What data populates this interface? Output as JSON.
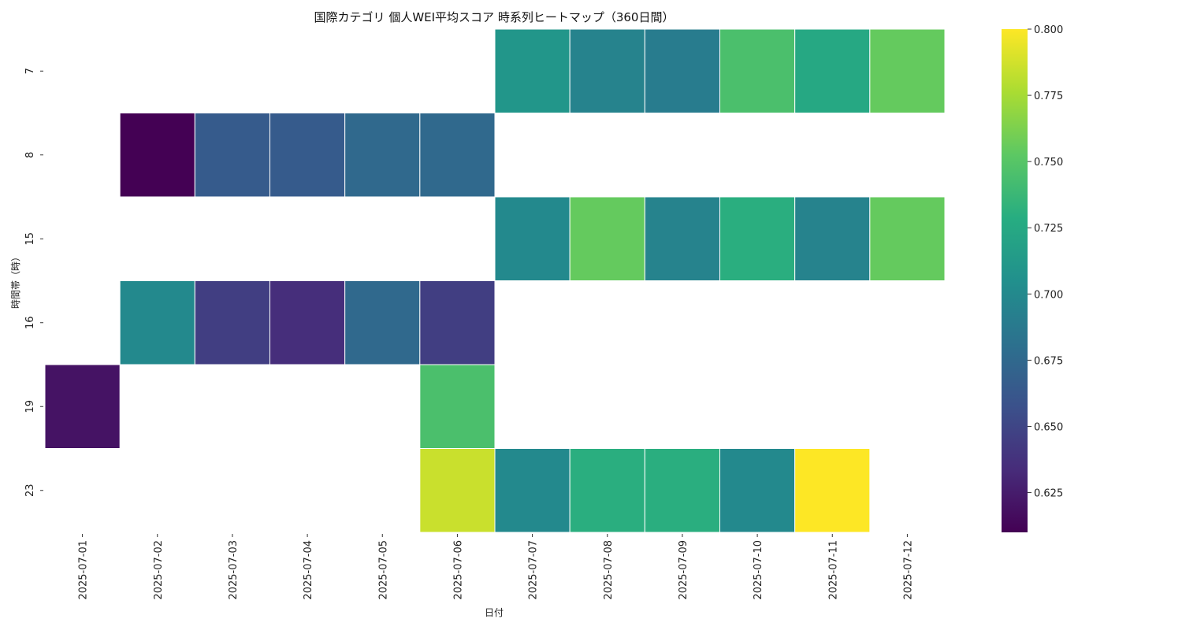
{
  "chart_data": {
    "type": "heatmap",
    "title": "国際カテゴリ 個人WEI平均スコア 時系列ヒートマップ（360日間）",
    "xlabel": "日付",
    "ylabel": "時間帯（時）",
    "x": [
      "2025-07-01",
      "2025-07-02",
      "2025-07-03",
      "2025-07-04",
      "2025-07-05",
      "2025-07-06",
      "2025-07-07",
      "2025-07-08",
      "2025-07-09",
      "2025-07-10",
      "2025-07-11",
      "2025-07-12"
    ],
    "y": [
      "7",
      "8",
      "15",
      "16",
      "19",
      "23"
    ],
    "values": [
      [
        null,
        null,
        null,
        null,
        null,
        null,
        0.71,
        0.695,
        0.69,
        0.745,
        0.725,
        0.755
      ],
      [
        null,
        0.61,
        0.665,
        0.665,
        0.675,
        0.675,
        null,
        null,
        null,
        null,
        null,
        null
      ],
      [
        null,
        null,
        null,
        null,
        null,
        null,
        0.7,
        0.755,
        0.695,
        0.73,
        0.695,
        0.755
      ],
      [
        null,
        0.7,
        0.645,
        0.635,
        0.675,
        0.645,
        null,
        null,
        null,
        null,
        null,
        null
      ],
      [
        0.62,
        null,
        null,
        null,
        null,
        0.745,
        null,
        null,
        null,
        null,
        null,
        null
      ],
      [
        null,
        null,
        null,
        null,
        null,
        0.785,
        0.7,
        0.73,
        0.73,
        0.7,
        0.8,
        null
      ]
    ],
    "colorbar": {
      "colormap": "viridis",
      "range": [
        0.61,
        0.8
      ],
      "ticks": [
        "0.625",
        "0.650",
        "0.675",
        "0.700",
        "0.725",
        "0.750",
        "0.775",
        "0.800"
      ]
    },
    "grid": false
  }
}
